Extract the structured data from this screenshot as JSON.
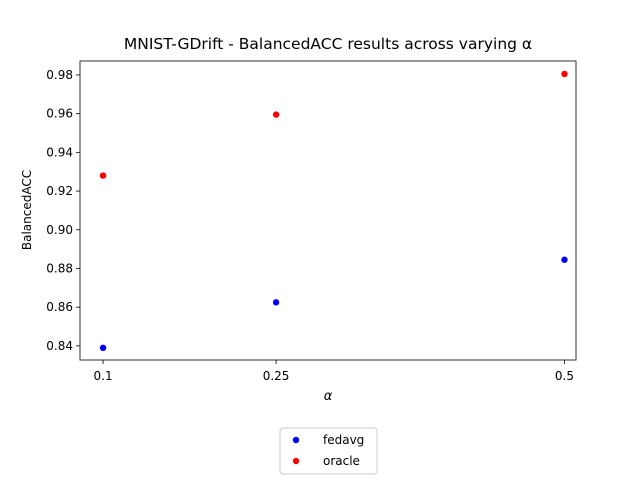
{
  "chart_data": {
    "type": "scatter",
    "title": "MNIST-GDrift - BalancedACC results across varying α",
    "xlabel": "α",
    "ylabel": "BalancedACC",
    "x_ticks": [
      0.1,
      0.25,
      0.5
    ],
    "x_tick_labels": [
      "0.1",
      "0.25",
      "0.5"
    ],
    "y_ticks": [
      0.84,
      0.86,
      0.88,
      0.9,
      0.92,
      0.94,
      0.96,
      0.98
    ],
    "y_tick_labels": [
      "0.84",
      "0.86",
      "0.88",
      "0.90",
      "0.92",
      "0.94",
      "0.96",
      "0.98"
    ],
    "xlim": [
      0.08,
      0.51
    ],
    "ylim": [
      0.8327,
      0.9872
    ],
    "grid": false,
    "legend": "below",
    "series": [
      {
        "name": "fedavg",
        "color": "#0000ff",
        "x": [
          0.1,
          0.25,
          0.5
        ],
        "y": [
          0.839,
          0.8625,
          0.8845
        ]
      },
      {
        "name": "oracle",
        "color": "#ff0000",
        "x": [
          0.1,
          0.25,
          0.5
        ],
        "y": [
          0.928,
          0.9595,
          0.9805
        ]
      }
    ]
  }
}
